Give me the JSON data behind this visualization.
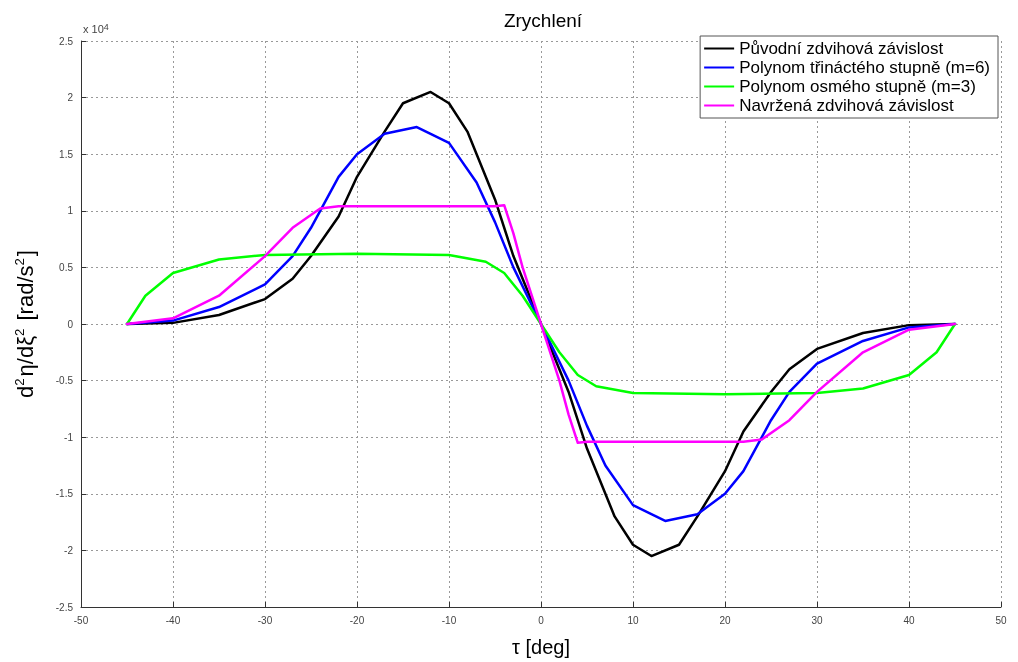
{
  "chart_data": {
    "type": "line",
    "title": "Zrychlení",
    "xlabel": "τ [deg]",
    "ylabel": "d$^{2}$η/dξ$^{2}$ [rad/s$^{2}$]",
    "annotations": [
      "x 10$^{4}$"
    ],
    "x": [
      -45,
      -40,
      -35,
      -30,
      -27,
      -25,
      -22,
      -20,
      -17,
      -15,
      -12,
      -10,
      -8,
      -5,
      -3,
      0,
      3,
      5,
      8,
      10,
      12,
      15,
      17,
      20,
      22,
      25,
      27,
      30,
      35,
      40,
      45
    ],
    "series": [
      {
        "name": "Původní zdvihová závislost",
        "color": "#000000",
        "values": [
          0,
          0.01,
          0.08,
          0.22,
          0.4,
          0.6,
          0.95,
          1.3,
          1.7,
          1.95,
          2.05,
          1.95,
          1.7,
          1.1,
          0.6,
          0,
          -0.6,
          -1.1,
          -1.7,
          -1.95,
          -2.05,
          -1.95,
          -1.7,
          -1.3,
          -0.95,
          -0.6,
          -0.4,
          -0.22,
          -0.08,
          -0.01,
          0
        ]
      },
      {
        "name": "Polynom třináctého stupně (m=6)",
        "color": "#0000ff",
        "x": [
          -45,
          -40,
          -35,
          -30,
          -27,
          -25,
          -22,
          -20,
          -17,
          -13.5,
          -10,
          -7,
          -5,
          -3,
          0,
          3,
          5,
          7,
          10,
          13.5,
          17,
          20,
          22,
          25,
          27,
          30,
          35,
          40,
          45
        ],
        "values": [
          0,
          0.03,
          0.15,
          0.35,
          0.6,
          0.85,
          1.3,
          1.5,
          1.68,
          1.74,
          1.6,
          1.25,
          0.9,
          0.5,
          0,
          -0.5,
          -0.9,
          -1.25,
          -1.6,
          -1.74,
          -1.68,
          -1.5,
          -1.3,
          -0.85,
          -0.6,
          -0.35,
          -0.15,
          -0.03,
          0
        ]
      },
      {
        "name": "Polynom osmého stupně (m=3)",
        "color": "#00ff00",
        "x": [
          -45,
          -43,
          -40,
          -35,
          -30,
          -20,
          -10,
          -6,
          -4,
          -2,
          0,
          2,
          4,
          6,
          10,
          20,
          30,
          35,
          40,
          43,
          45
        ],
        "values": [
          0,
          0.25,
          0.45,
          0.57,
          0.61,
          0.62,
          0.61,
          0.55,
          0.45,
          0.25,
          0,
          -0.25,
          -0.45,
          -0.55,
          -0.61,
          -0.62,
          -0.61,
          -0.57,
          -0.45,
          -0.25,
          0
        ]
      },
      {
        "name": "Navržená zdvihová závislost",
        "color": "#ff00ff",
        "x": [
          -45,
          -40,
          -35,
          -30,
          -27,
          -24,
          -22,
          -10,
          -5,
          -4,
          -3,
          -2,
          0,
          2,
          3,
          4,
          5,
          10,
          22,
          24,
          27,
          30,
          35,
          40,
          45
        ],
        "values": [
          0,
          0.05,
          0.25,
          0.6,
          0.85,
          1.02,
          1.04,
          1.04,
          1.04,
          1.05,
          0.8,
          0.5,
          0,
          -0.5,
          -0.8,
          -1.05,
          -1.04,
          -1.04,
          -1.04,
          -1.02,
          -0.85,
          -0.6,
          -0.25,
          -0.05,
          0
        ]
      }
    ],
    "xlim": [
      -50,
      50
    ],
    "xticks": [
      -50,
      -40,
      -30,
      -20,
      -10,
      0,
      10,
      20,
      30,
      40,
      50
    ],
    "ylim": [
      -2.5,
      2.5
    ],
    "yticks": [
      -2.5,
      -2,
      -1.5,
      -1,
      -0.5,
      0,
      0.5,
      1,
      1.5,
      2,
      2.5
    ],
    "grid": true,
    "legend": "top right",
    "marker": "none",
    "line_style": "solid"
  }
}
